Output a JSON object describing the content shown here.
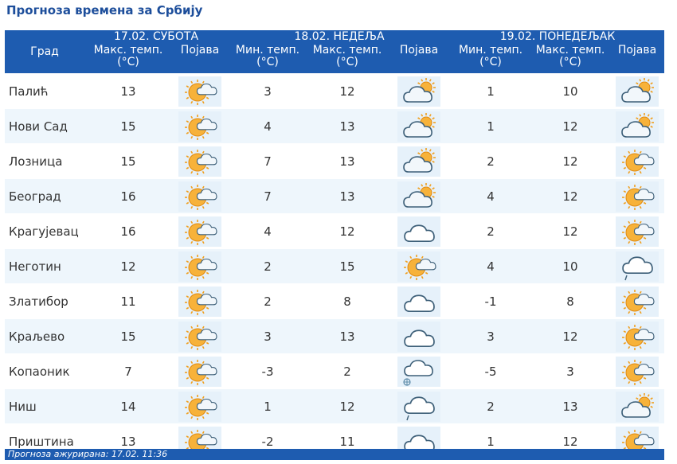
{
  "title": "Прогноза времена за Србију",
  "headers": {
    "city": "Град",
    "days": [
      "17.02. СУБОТА",
      "18.02. НЕДЕЉА",
      "19.02. ПОНЕДЕЉАК"
    ],
    "max_temp": "Макс. темп. (°C)",
    "min_temp": "Мин. темп. (°C)",
    "phenomenon": "Појава"
  },
  "rows": [
    {
      "city": "Палић",
      "d1_max": "13",
      "d1_icon": "sun-cloud-icon",
      "d2_min": "3",
      "d2_max": "12",
      "d2_icon": "cloud-sun-icon",
      "d3_min": "1",
      "d3_max": "10",
      "d3_icon": "cloud-sun-icon"
    },
    {
      "city": "Нови Сад",
      "d1_max": "15",
      "d1_icon": "sun-cloud-icon",
      "d2_min": "4",
      "d2_max": "13",
      "d2_icon": "cloud-sun-icon",
      "d3_min": "1",
      "d3_max": "12",
      "d3_icon": "cloud-sun-icon"
    },
    {
      "city": "Лозница",
      "d1_max": "15",
      "d1_icon": "sun-cloud-icon",
      "d2_min": "7",
      "d2_max": "13",
      "d2_icon": "cloud-sun-icon",
      "d3_min": "2",
      "d3_max": "12",
      "d3_icon": "sun-cloud-icon"
    },
    {
      "city": "Београд",
      "d1_max": "16",
      "d1_icon": "sun-cloud-icon",
      "d2_min": "7",
      "d2_max": "13",
      "d2_icon": "cloud-sun-icon",
      "d3_min": "4",
      "d3_max": "12",
      "d3_icon": "sun-cloud-icon"
    },
    {
      "city": "Крагујевац",
      "d1_max": "16",
      "d1_icon": "sun-cloud-icon",
      "d2_min": "4",
      "d2_max": "12",
      "d2_icon": "cloud-icon",
      "d3_min": "2",
      "d3_max": "12",
      "d3_icon": "sun-cloud-icon"
    },
    {
      "city": "Неготин",
      "d1_max": "12",
      "d1_icon": "sun-cloud-icon",
      "d2_min": "2",
      "d2_max": "15",
      "d2_icon": "sun-cloud-icon",
      "d3_min": "4",
      "d3_max": "10",
      "d3_icon": "cloud-rain-icon"
    },
    {
      "city": "Златибор",
      "d1_max": "11",
      "d1_icon": "sun-cloud-icon",
      "d2_min": "2",
      "d2_max": "8",
      "d2_icon": "cloud-icon",
      "d3_min": "-1",
      "d3_max": "8",
      "d3_icon": "sun-cloud-icon"
    },
    {
      "city": "Краљево",
      "d1_max": "15",
      "d1_icon": "sun-cloud-icon",
      "d2_min": "3",
      "d2_max": "13",
      "d2_icon": "cloud-icon",
      "d3_min": "3",
      "d3_max": "12",
      "d3_icon": "sun-cloud-icon"
    },
    {
      "city": "Копаоник",
      "d1_max": "7",
      "d1_icon": "sun-cloud-icon",
      "d2_min": "-3",
      "d2_max": "2",
      "d2_icon": "cloud-snow-icon",
      "d3_min": "-5",
      "d3_max": "3",
      "d3_icon": "sun-cloud-icon"
    },
    {
      "city": "Ниш",
      "d1_max": "14",
      "d1_icon": "sun-cloud-icon",
      "d2_min": "1",
      "d2_max": "12",
      "d2_icon": "cloud-rain-icon",
      "d3_min": "2",
      "d3_max": "13",
      "d3_icon": "cloud-sun-icon"
    },
    {
      "city": "Приштина",
      "d1_max": "13",
      "d1_icon": "sun-cloud-icon",
      "d2_min": "-2",
      "d2_max": "11",
      "d2_icon": "cloud-icon",
      "d3_min": "1",
      "d3_max": "12",
      "d3_icon": "sun-cloud-icon"
    }
  ],
  "footer": "Прогноза ажурирана:  17.02. 11:36"
}
